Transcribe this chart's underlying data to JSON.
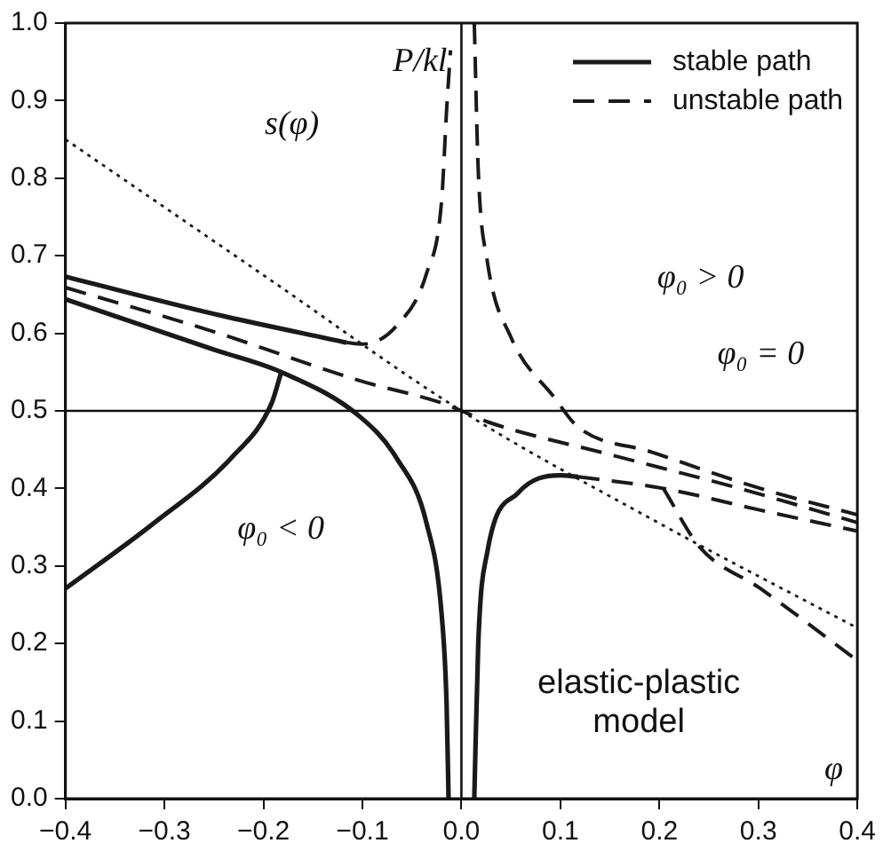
{
  "chart_data": {
    "type": "line",
    "xlabel": "φ",
    "ylabel": "P/kl",
    "xlim": [
      -0.4,
      0.4
    ],
    "ylim": [
      0,
      1
    ],
    "xticks": [
      {
        "value": -0.4,
        "label": "−0.4"
      },
      {
        "value": -0.3,
        "label": "−0.3"
      },
      {
        "value": -0.2,
        "label": "−0.2"
      },
      {
        "value": -0.1,
        "label": "−0.1"
      },
      {
        "value": 0,
        "label": "0.0"
      },
      {
        "value": 0.1,
        "label": "0.1"
      },
      {
        "value": 0.2,
        "label": "0.2"
      },
      {
        "value": 0.3,
        "label": "0.3"
      },
      {
        "value": 0.4,
        "label": "0.4"
      }
    ],
    "yticks": [
      {
        "value": 0,
        "label": "0.0"
      },
      {
        "value": 0.1,
        "label": "0.1"
      },
      {
        "value": 0.2,
        "label": "0.2"
      },
      {
        "value": 0.3,
        "label": "0.3"
      },
      {
        "value": 0.4,
        "label": "0.4"
      },
      {
        "value": 0.5,
        "label": "0.5"
      },
      {
        "value": 0.6,
        "label": "0.6"
      },
      {
        "value": 0.7,
        "label": "0.7"
      },
      {
        "value": 0.8,
        "label": "0.8"
      },
      {
        "value": 0.9,
        "label": "0.9"
      },
      {
        "value": 1,
        "label": "1.0"
      }
    ],
    "grid": false,
    "legend": "top right",
    "marker": "none",
    "series": [
      {
        "name": "stable path",
        "color": "#1a1a1a",
        "line_style": "solid",
        "x": [
          -0.4,
          -0.25,
          -0.116
        ],
        "values": [
          0.673,
          0.625,
          0.588
        ]
      },
      {
        "name": "unstable path",
        "color": "#1a1a1a",
        "line_style": "dashed",
        "x": [
          -0.116,
          -0.1,
          -0.066,
          -0.035,
          -0.02,
          -0.015,
          -0.011
        ],
        "values": [
          0.588,
          0.586,
          0.609,
          0.678,
          0.771,
          0.887,
          0.965
        ]
      },
      {
        "color": "#1a1a1a",
        "line_style": "solid",
        "x": [
          -0.4,
          -0.25,
          -0.182,
          -0.103,
          -0.066,
          -0.035,
          -0.02,
          -0.015,
          -0.013
        ],
        "values": [
          0.644,
          0.579,
          0.55,
          0.493,
          0.44,
          0.354,
          0.238,
          0.123,
          0
        ]
      },
      {
        "color": "#1a1a1a",
        "line_style": "solid",
        "x": [
          -0.4,
          -0.312,
          -0.232,
          -0.192,
          -0.182
        ],
        "values": [
          0.271,
          0.354,
          0.44,
          0.509,
          0.55
        ]
      },
      {
        "color": "#1a1a1a",
        "line_style": "dashed",
        "x": [
          0.013,
          0.017,
          0.026,
          0.05,
          0.094,
          0.118,
          0.192,
          0.302,
          0.4
        ],
        "values": [
          1,
          0.81,
          0.694,
          0.595,
          0.517,
          0.479,
          0.447,
          0.4,
          0.366
        ]
      },
      {
        "color": "#1a1a1a",
        "line_style": "dashed",
        "x": [
          -0.4,
          -0.25,
          -0.103,
          -0.017,
          0,
          0.026,
          0.149,
          0.278,
          0.4
        ],
        "values": [
          0.659,
          0.602,
          0.539,
          0.509,
          0.5,
          0.486,
          0.444,
          0.401,
          0.356
        ]
      },
      {
        "color": "#1a1a1a",
        "line_style": "solid",
        "x": [
          0.013,
          0.017,
          0.026,
          0.057,
          0.1,
          0.118
        ],
        "values": [
          0,
          0.2,
          0.317,
          0.394,
          0.417,
          0.415
        ]
      },
      {
        "color": "#1a1a1a",
        "line_style": "dashed",
        "x": [
          0.118,
          0.204,
          0.302,
          0.4
        ],
        "values": [
          0.415,
          0.4,
          0.372,
          0.345
        ]
      },
      {
        "color": "#1a1a1a",
        "line_style": "dashed",
        "x": [
          0.204,
          0.241,
          0.302,
          0.4
        ],
        "values": [
          0.4,
          0.324,
          0.271,
          0.178
        ]
      },
      {
        "color": "#1a1a1a",
        "line_style": "dotted",
        "x": [
          -0.4,
          -0.2,
          0,
          0.2,
          0.4
        ],
        "values": [
          0.85,
          0.675,
          0.5,
          0.355,
          0.22
        ]
      }
    ],
    "ref_lines": [
      {
        "axis": "y",
        "value": 0.5
      },
      {
        "axis": "x",
        "value": 0
      }
    ],
    "annotations": [
      "s(φ)",
      "φ₀ > 0",
      "φ₀ = 0",
      "φ₀ < 0",
      "elastic-plastic model"
    ]
  }
}
